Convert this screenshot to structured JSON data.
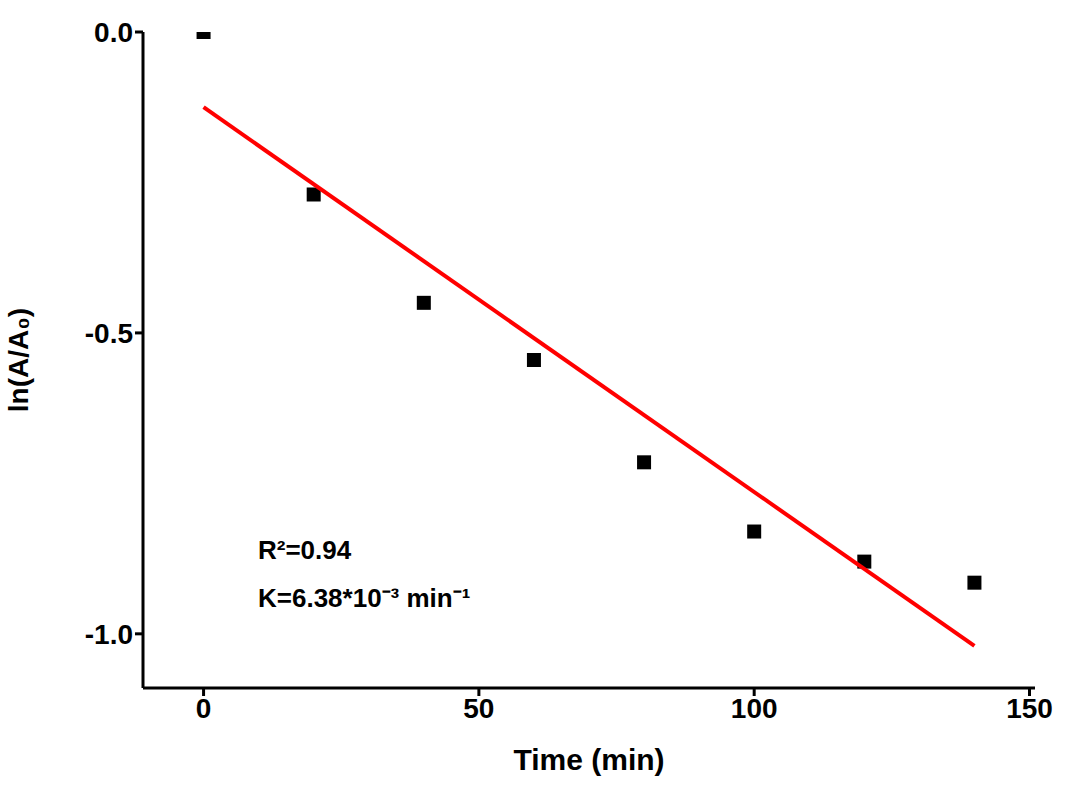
{
  "chart_data": {
    "type": "scatter",
    "x_label": "Time (min)",
    "y_label": "ln(A/A₀)",
    "xlim": [
      -11,
      151
    ],
    "xticks": [
      0,
      50,
      100,
      150
    ],
    "ylim": [
      -1.09,
      0
    ],
    "yticks": [
      {
        "value": 0,
        "label": "0.0"
      },
      {
        "value": -0.5,
        "label": "-0.5"
      },
      {
        "value": -1.0,
        "label": "-1.0"
      }
    ],
    "grid": false,
    "annotations": [
      "R²=0.94",
      "K=6.38*10⁻³ min⁻¹"
    ],
    "series": [
      {
        "type": "scatter",
        "marker": "square",
        "color": "#000000",
        "x": [
          0,
          20,
          40,
          60,
          80,
          100,
          120,
          140
        ],
        "values": [
          0,
          -0.27,
          -0.45,
          -0.545,
          -0.715,
          -0.83,
          -0.88,
          -0.915
        ]
      },
      {
        "type": "line",
        "line_style": "solid",
        "color": "#ff0000",
        "x": [
          0,
          140
        ],
        "values": [
          -0.125,
          -1.02
        ]
      }
    ]
  }
}
